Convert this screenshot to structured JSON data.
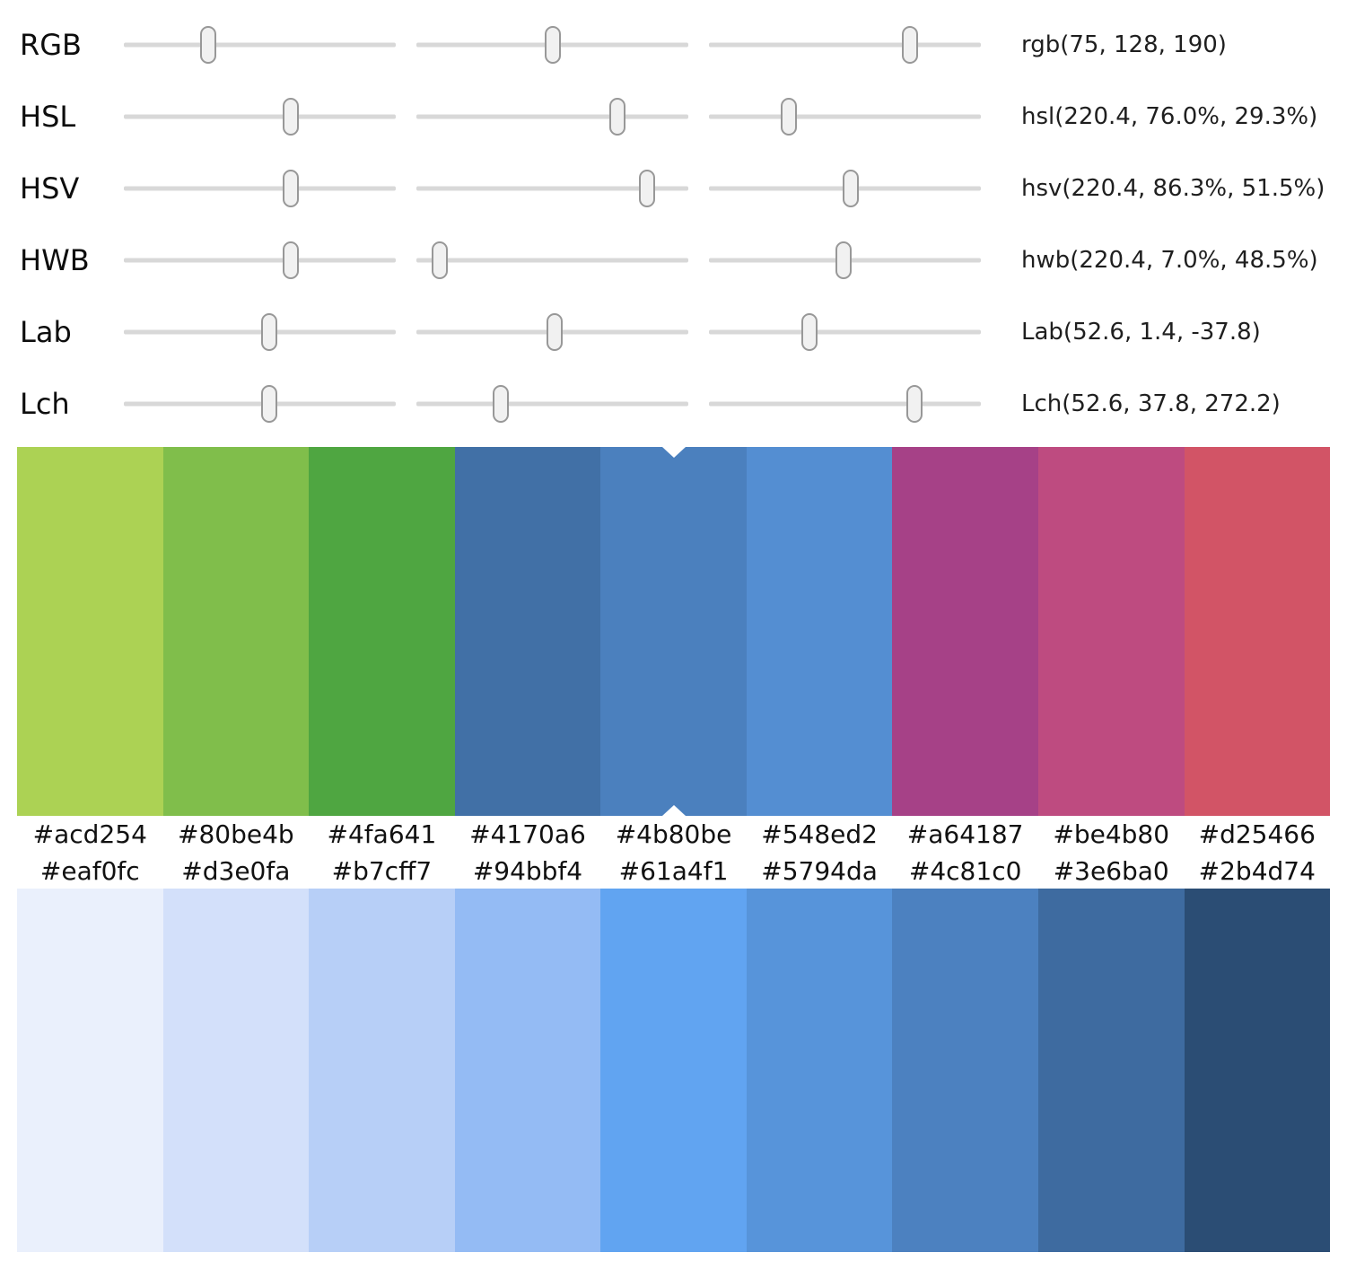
{
  "panel": {
    "rows": [
      {
        "label": "RGB",
        "value": "rgb(75, 128, 190)",
        "thumbs": [
          "31%",
          "50%",
          "74%"
        ]
      },
      {
        "label": "HSL",
        "value": "hsl(220.4, 76.0%, 29.3%)",
        "thumbs": [
          "61.3%",
          "74%",
          "29.5%"
        ]
      },
      {
        "label": "HSV",
        "value": "hsv(220.4, 86.3%, 51.5%)",
        "thumbs": [
          "61.3%",
          "84.7%",
          "52%"
        ]
      },
      {
        "label": "HWB",
        "value": "hwb(220.4, 7.0%, 48.5%)",
        "thumbs": [
          "61.3%",
          "8.6%",
          "49.5%"
        ]
      },
      {
        "label": "Lab",
        "value": "Lab(52.6, 1.4, -37.8)",
        "thumbs": [
          "53.5%",
          "50.7%",
          "36.8%"
        ]
      },
      {
        "label": "Lch",
        "value": "Lch(52.6, 37.8, 272.2)",
        "thumbs": [
          "53.5%",
          "31%",
          "75.6%"
        ]
      }
    ]
  },
  "harmony_palette": {
    "swatches": [
      "#acd254",
      "#80be4b",
      "#4fa641",
      "#4170a6",
      "#4b80be",
      "#548ed2",
      "#a64187",
      "#be4b80",
      "#d25466"
    ],
    "selected_index": 4,
    "marker_left": "50%"
  },
  "scale_palette": {
    "swatches": [
      "#eaf0fc",
      "#d3e0fa",
      "#b7cff7",
      "#94bbf4",
      "#61a4f1",
      "#5794da",
      "#4c81c0",
      "#3e6ba0",
      "#2b4d74"
    ]
  },
  "ui_colors": {
    "track": "#d8d8d8",
    "thumb_fill": "#f1f1f1",
    "thumb_border": "#989898",
    "label_text": "#0d0d0d",
    "value_text": "#1f1f1f",
    "hex_text": "#111111"
  }
}
